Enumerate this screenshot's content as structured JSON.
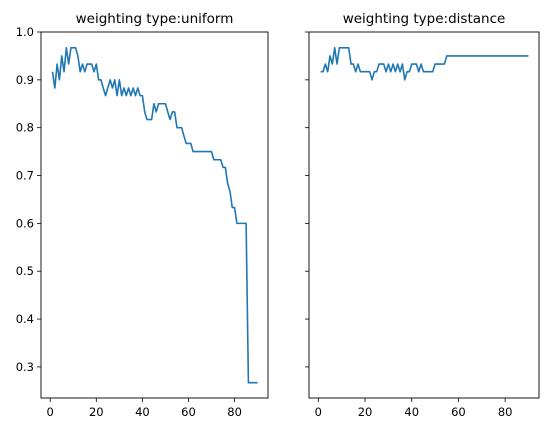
{
  "colors": {
    "series": "#1f77b4",
    "axes": "#000000",
    "background": "#ffffff"
  },
  "chart_data": [
    {
      "type": "line",
      "title": "weighting type:uniform",
      "xlabel": "",
      "ylabel": "",
      "xlim": [
        -4,
        94.5
      ],
      "ylim": [
        0.235,
        1.0
      ],
      "xticks": [
        0,
        20,
        40,
        60,
        80
      ],
      "yticks": [
        0.3,
        0.4,
        0.5,
        0.6,
        0.7,
        0.8,
        0.9,
        1.0
      ],
      "ytick_labels": [
        "0.3",
        "0.4",
        "0.5",
        "0.6",
        "0.7",
        "0.8",
        "0.9",
        "1.0"
      ],
      "show_ytick_labels": true,
      "grid": false,
      "series": [
        {
          "x": [
            1,
            2,
            3,
            4,
            5,
            6,
            7,
            8,
            9,
            10,
            11,
            12,
            13,
            14,
            15,
            16,
            17,
            18,
            19,
            20,
            21,
            22,
            23,
            24,
            25,
            26,
            27,
            28,
            29,
            30,
            31,
            32,
            33,
            34,
            35,
            36,
            37,
            38,
            39,
            40,
            41,
            42,
            43,
            44,
            45,
            46,
            47,
            48,
            49,
            50,
            51,
            52,
            53,
            54,
            55,
            56,
            57,
            58,
            59,
            60,
            61,
            62,
            63,
            64,
            65,
            66,
            67,
            68,
            69,
            70,
            71,
            72,
            73,
            74,
            75,
            76,
            77,
            78,
            79,
            80,
            81,
            82,
            83,
            84,
            85,
            86,
            87,
            88,
            89,
            90
          ],
          "y": [
            0.917,
            0.883,
            0.933,
            0.9,
            0.95,
            0.917,
            0.967,
            0.933,
            0.967,
            0.967,
            0.967,
            0.95,
            0.917,
            0.933,
            0.917,
            0.933,
            0.933,
            0.933,
            0.917,
            0.933,
            0.9,
            0.9,
            0.883,
            0.867,
            0.883,
            0.9,
            0.883,
            0.9,
            0.867,
            0.9,
            0.867,
            0.883,
            0.867,
            0.883,
            0.867,
            0.883,
            0.867,
            0.883,
            0.867,
            0.867,
            0.833,
            0.817,
            0.817,
            0.817,
            0.85,
            0.833,
            0.85,
            0.85,
            0.85,
            0.85,
            0.833,
            0.817,
            0.833,
            0.833,
            0.8,
            0.8,
            0.8,
            0.783,
            0.767,
            0.767,
            0.767,
            0.75,
            0.75,
            0.75,
            0.75,
            0.75,
            0.75,
            0.75,
            0.75,
            0.75,
            0.733,
            0.733,
            0.733,
            0.733,
            0.717,
            0.717,
            0.683,
            0.667,
            0.633,
            0.633,
            0.6,
            0.6,
            0.6,
            0.6,
            0.6,
            0.267,
            0.267,
            0.267,
            0.267,
            0.267
          ]
        }
      ]
    },
    {
      "type": "line",
      "title": "weighting type:distance",
      "xlabel": "",
      "ylabel": "",
      "xlim": [
        -4,
        94.5
      ],
      "ylim": [
        0.235,
        1.0
      ],
      "xticks": [
        0,
        20,
        40,
        60,
        80
      ],
      "yticks": [
        0.3,
        0.4,
        0.5,
        0.6,
        0.7,
        0.8,
        0.9,
        1.0
      ],
      "show_ytick_labels": false,
      "grid": false,
      "series": [
        {
          "x": [
            1,
            2,
            3,
            4,
            5,
            6,
            7,
            8,
            9,
            10,
            11,
            12,
            13,
            14,
            15,
            16,
            17,
            18,
            19,
            20,
            21,
            22,
            23,
            24,
            25,
            26,
            27,
            28,
            29,
            30,
            31,
            32,
            33,
            34,
            35,
            36,
            37,
            38,
            39,
            40,
            41,
            42,
            43,
            44,
            45,
            46,
            47,
            48,
            49,
            50,
            51,
            52,
            53,
            54,
            55,
            56,
            57,
            58,
            59,
            60,
            61,
            62,
            63,
            64,
            65,
            66,
            67,
            68,
            69,
            70,
            71,
            72,
            73,
            74,
            75,
            76,
            77,
            78,
            79,
            80,
            81,
            82,
            83,
            84,
            85,
            86,
            87,
            88,
            89,
            90
          ],
          "y": [
            0.917,
            0.917,
            0.933,
            0.917,
            0.95,
            0.933,
            0.967,
            0.933,
            0.967,
            0.967,
            0.967,
            0.967,
            0.967,
            0.933,
            0.933,
            0.917,
            0.933,
            0.917,
            0.917,
            0.917,
            0.917,
            0.917,
            0.9,
            0.917,
            0.917,
            0.933,
            0.933,
            0.933,
            0.917,
            0.933,
            0.917,
            0.933,
            0.917,
            0.933,
            0.917,
            0.933,
            0.9,
            0.917,
            0.917,
            0.933,
            0.933,
            0.933,
            0.917,
            0.933,
            0.917,
            0.917,
            0.917,
            0.917,
            0.917,
            0.933,
            0.933,
            0.933,
            0.933,
            0.933,
            0.95,
            0.95,
            0.95,
            0.95,
            0.95,
            0.95,
            0.95,
            0.95,
            0.95,
            0.95,
            0.95,
            0.95,
            0.95,
            0.95,
            0.95,
            0.95,
            0.95,
            0.95,
            0.95,
            0.95,
            0.95,
            0.95,
            0.95,
            0.95,
            0.95,
            0.95,
            0.95,
            0.95,
            0.95,
            0.95,
            0.95,
            0.95,
            0.95,
            0.95,
            0.95,
            0.95
          ]
        }
      ]
    }
  ]
}
